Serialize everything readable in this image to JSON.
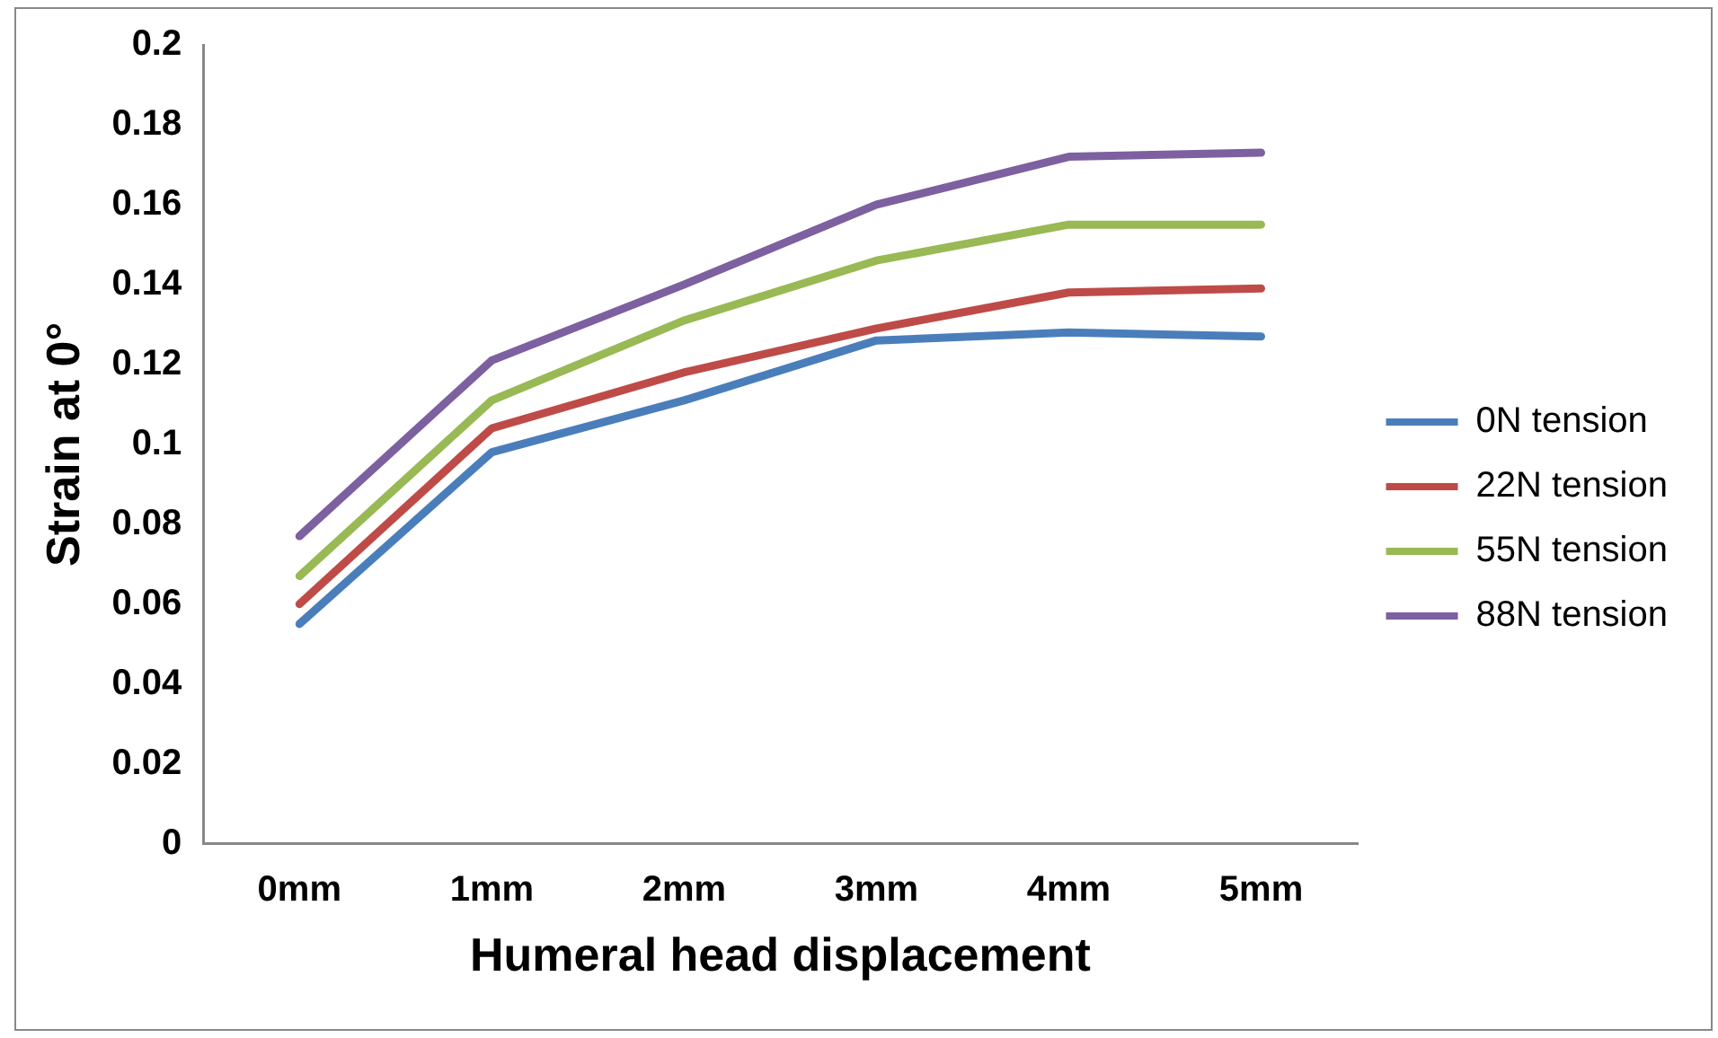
{
  "chart_data": {
    "type": "line",
    "xlabel": "Humeral head displacement",
    "ylabel": "Strain at 0°",
    "categories": [
      "0mm",
      "1mm",
      "2mm",
      "3mm",
      "4mm",
      "5mm"
    ],
    "series": [
      {
        "name": "0N tension",
        "color": "#4a7ebb",
        "values": [
          0.055,
          0.098,
          0.111,
          0.126,
          0.128,
          0.127
        ]
      },
      {
        "name": "22N tension",
        "color": "#be4b48",
        "values": [
          0.06,
          0.104,
          0.118,
          0.129,
          0.138,
          0.139
        ]
      },
      {
        "name": "55N tension",
        "color": "#98b954",
        "values": [
          0.067,
          0.111,
          0.131,
          0.146,
          0.155,
          0.155
        ]
      },
      {
        "name": "88N tension",
        "color": "#7d60a0",
        "values": [
          0.077,
          0.121,
          0.14,
          0.16,
          0.172,
          0.173
        ]
      }
    ],
    "ylim": [
      0,
      0.2
    ],
    "yticks": [
      0,
      0.02,
      0.04,
      0.06,
      0.08,
      0.1,
      0.12,
      0.14,
      0.16,
      0.18,
      0.2
    ],
    "legend": "right",
    "marker": "none",
    "line_style": "solid"
  }
}
